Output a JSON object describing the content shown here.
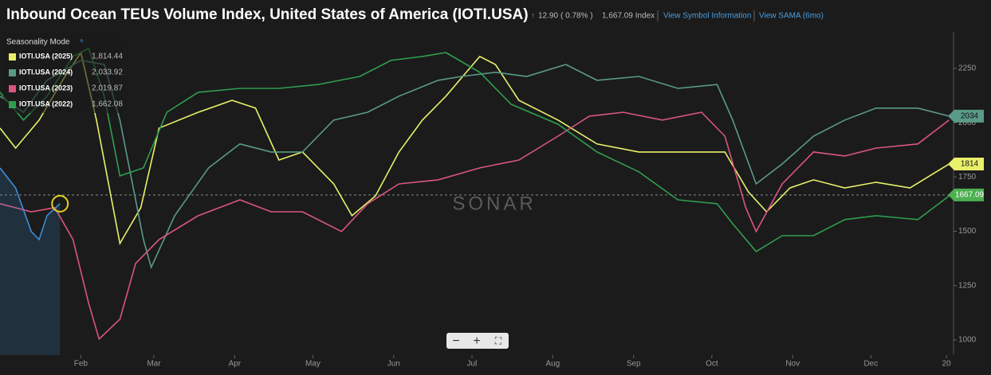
{
  "header": {
    "title": "Inbound Ocean TEUs Volume Index, United States of America (IOTI.USA)",
    "change": "12.90",
    "change_pct": "( 0.78% )",
    "last": "1,667.09 Index",
    "link_info": "View Symbol Information",
    "link_sama": "View SAMA (6mo)"
  },
  "chart_data": {
    "type": "line",
    "legend_title": "Seasonality Mode",
    "watermark": "SONAR",
    "xlim": [
      1,
      367
    ],
    "ylim": [
      930,
      2400
    ],
    "xticks": [
      {
        "value": 32,
        "label": "Feb"
      },
      {
        "value": 60,
        "label": "Mar"
      },
      {
        "value": 91,
        "label": "Apr"
      },
      {
        "value": 121,
        "label": "May"
      },
      {
        "value": 152,
        "label": "Jun"
      },
      {
        "value": 182,
        "label": "Jul"
      },
      {
        "value": 213,
        "label": "Aug"
      },
      {
        "value": 244,
        "label": "Sep"
      },
      {
        "value": 274,
        "label": "Oct"
      },
      {
        "value": 305,
        "label": "Nov"
      },
      {
        "value": 335,
        "label": "Dec"
      },
      {
        "value": 364,
        "label": "20"
      }
    ],
    "yticks": [
      1000,
      1250,
      1500,
      1750,
      2000,
      2250
    ],
    "reference_line": {
      "value": 1667.09,
      "label": "1667.09",
      "color": "#4caf50"
    },
    "series": [
      {
        "name": "IOTI.USA (2025)",
        "legend_value": "1,814.44",
        "badge": "1814",
        "color": "#e8f06a",
        "x": [
          1,
          7,
          16,
          25,
          32,
          38,
          47,
          55,
          62,
          77,
          90,
          99,
          108,
          117,
          129,
          136,
          145,
          154,
          163,
          172,
          185,
          191,
          200,
          215,
          230,
          246,
          264,
          279,
          288,
          295,
          304,
          313,
          325,
          337,
          350,
          365
        ],
        "values": [
          1975,
          1883,
          2012,
          2195,
          2323,
          2012,
          1444,
          1609,
          1975,
          2048,
          2103,
          2067,
          1828,
          1865,
          1718,
          1572,
          1663,
          1865,
          2012,
          2122,
          2305,
          2268,
          2103,
          2012,
          1902,
          1865,
          1865,
          1865,
          1682,
          1590,
          1700,
          1737,
          1700,
          1726,
          1700,
          1810
        ]
      },
      {
        "name": "IOTI.USA (2024)",
        "legend_value": "2,033.92",
        "badge": "2034",
        "color": "#5a9a88",
        "x": [
          1,
          10,
          19,
          32,
          41,
          47,
          56,
          59,
          68,
          81,
          93,
          105,
          117,
          129,
          142,
          154,
          169,
          178,
          191,
          203,
          218,
          230,
          246,
          261,
          276,
          282,
          291,
          301,
          313,
          325,
          337,
          353,
          365
        ],
        "values": [
          2122,
          2048,
          2195,
          2287,
          2268,
          2012,
          1462,
          1334,
          1572,
          1792,
          1902,
          1865,
          1865,
          2012,
          2048,
          2122,
          2195,
          2213,
          2232,
          2213,
          2268,
          2195,
          2213,
          2158,
          2176,
          2012,
          1718,
          1810,
          1938,
          2012,
          2067,
          2067,
          2030
        ]
      },
      {
        "name": "IOTI.USA (2023)",
        "legend_value": "2,019.87",
        "color": "#d9557f",
        "x": [
          1,
          13,
          22,
          29,
          35,
          39,
          47,
          53,
          62,
          77,
          93,
          105,
          117,
          132,
          142,
          154,
          169,
          185,
          200,
          215,
          227,
          240,
          255,
          270,
          279,
          287,
          291,
          301,
          313,
          325,
          337,
          353,
          365
        ],
        "values": [
          1627,
          1590,
          1609,
          1462,
          1169,
          1004,
          1095,
          1352,
          1462,
          1572,
          1645,
          1590,
          1590,
          1499,
          1627,
          1718,
          1737,
          1792,
          1828,
          1938,
          2030,
          2048,
          2012,
          2048,
          1938,
          1609,
          1499,
          1718,
          1865,
          1847,
          1883,
          1902,
          2012
        ]
      },
      {
        "name": "IOTI.USA (2022)",
        "legend_value": "1,662.08",
        "color": "#2f9e4f",
        "x": [
          1,
          10,
          19,
          29,
          35,
          41,
          47,
          56,
          65,
          77,
          93,
          108,
          123,
          139,
          151,
          163,
          172,
          185,
          197,
          215,
          230,
          246,
          261,
          276,
          282,
          291,
          301,
          313,
          325,
          337,
          353,
          365
        ],
        "values": [
          2140,
          2012,
          2122,
          2305,
          2342,
          2122,
          1755,
          1792,
          2048,
          2140,
          2158,
          2158,
          2176,
          2213,
          2287,
          2305,
          2323,
          2232,
          2085,
          1993,
          1865,
          1774,
          1645,
          1627,
          1535,
          1407,
          1480,
          1480,
          1554,
          1572,
          1554,
          1663
        ]
      },
      {
        "color": "#3a8fd8",
        "x": [
          1,
          7,
          13,
          16,
          19,
          24
        ],
        "values": [
          1792,
          1700,
          1499,
          1462,
          1572,
          1627
        ]
      }
    ]
  }
}
